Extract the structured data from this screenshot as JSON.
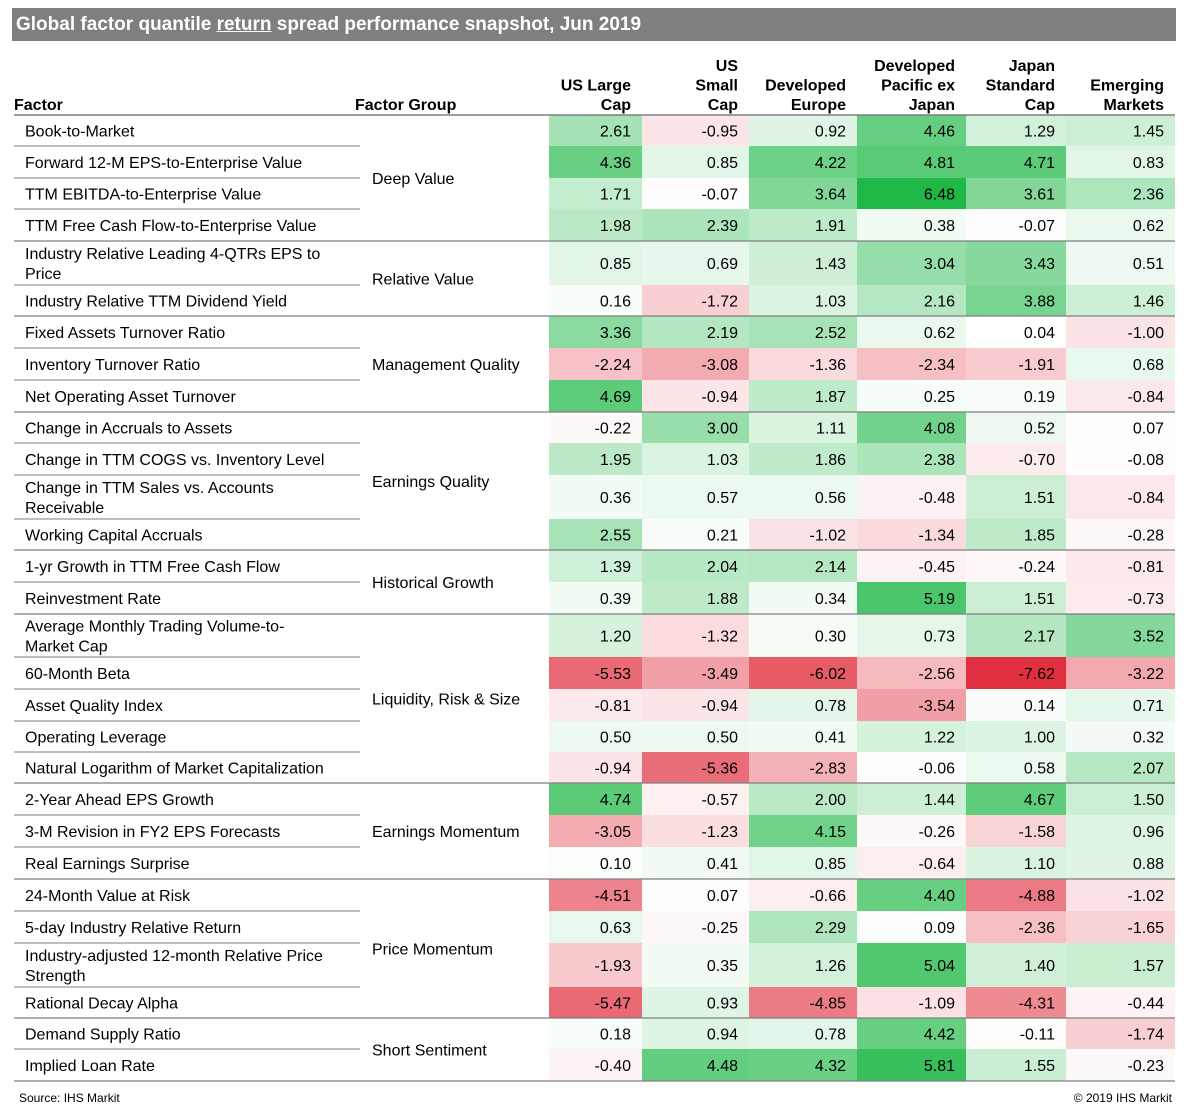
{
  "title": {
    "before": "Global factor quantile ",
    "underlined": "return",
    "after": " spread performance snapshot, Jun 2019"
  },
  "footer": {
    "source": "Source: IHS Markit",
    "copyright": "© 2019 IHS Markit"
  },
  "colors": {
    "positive_max": "#1fb847",
    "negative_max": "#e0303f",
    "neutral": "#ffffff",
    "title_background": "#7f7f7f",
    "rule_lines": "#7f7f7f"
  },
  "chart_data": {
    "type": "table",
    "color_scale": {
      "min": -7.62,
      "max": 6.48,
      "midpoint": 0
    },
    "headers": {
      "factor": "Factor",
      "group": "Factor Group",
      "columns": [
        [
          "US Large",
          "Cap"
        ],
        [
          "US",
          "Small",
          "Cap"
        ],
        [
          "Developed",
          "Europe"
        ],
        [
          "Developed",
          "Pacific ex",
          "Japan"
        ],
        [
          "Japan",
          "Standard",
          "Cap"
        ],
        [
          "Emerging",
          "Markets"
        ]
      ]
    },
    "groups": [
      {
        "name": "Deep Value",
        "rows": [
          {
            "factor": [
              "Book-to-Market"
            ],
            "values": [
              2.61,
              -0.95,
              0.92,
              4.46,
              1.29,
              1.45
            ]
          },
          {
            "factor": [
              "Forward 12-M EPS-to-Enterprise Value"
            ],
            "values": [
              4.36,
              0.85,
              4.22,
              4.81,
              4.71,
              0.83
            ]
          },
          {
            "factor": [
              "TTM EBITDA-to-Enterprise Value"
            ],
            "values": [
              1.71,
              -0.07,
              3.64,
              6.48,
              3.61,
              2.36
            ]
          },
          {
            "factor": [
              "TTM Free Cash Flow-to-Enterprise Value"
            ],
            "values": [
              1.98,
              2.39,
              1.91,
              0.38,
              -0.07,
              0.62
            ]
          }
        ]
      },
      {
        "name": "Relative Value",
        "rows": [
          {
            "factor": [
              "Industry Relative Leading 4-QTRs EPS to",
              "Price"
            ],
            "values": [
              0.85,
              0.69,
              1.43,
              3.04,
              3.43,
              0.51
            ]
          },
          {
            "factor": [
              "Industry Relative TTM Dividend Yield"
            ],
            "values": [
              0.16,
              -1.72,
              1.03,
              2.16,
              3.88,
              1.46
            ]
          }
        ]
      },
      {
        "name": "Management Quality",
        "rows": [
          {
            "factor": [
              "Fixed Assets Turnover Ratio"
            ],
            "values": [
              3.36,
              2.19,
              2.52,
              0.62,
              0.04,
              -1.0
            ]
          },
          {
            "factor": [
              "Inventory Turnover Ratio"
            ],
            "values": [
              -2.24,
              -3.08,
              -1.36,
              -2.34,
              -1.91,
              0.68
            ]
          },
          {
            "factor": [
              "Net Operating Asset Turnover"
            ],
            "values": [
              4.69,
              -0.94,
              1.87,
              0.25,
              0.19,
              -0.84
            ]
          }
        ]
      },
      {
        "name": "Earnings Quality",
        "rows": [
          {
            "factor": [
              "Change in Accruals to Assets"
            ],
            "values": [
              -0.22,
              3.0,
              1.11,
              4.08,
              0.52,
              0.07
            ]
          },
          {
            "factor": [
              "Change in TTM COGS vs. Inventory Level"
            ],
            "values": [
              1.95,
              1.03,
              1.86,
              2.38,
              -0.7,
              -0.08
            ]
          },
          {
            "factor": [
              "Change in TTM Sales vs. Accounts",
              "Receivable"
            ],
            "values": [
              0.36,
              0.57,
              0.56,
              -0.48,
              1.51,
              -0.84
            ]
          },
          {
            "factor": [
              "Working Capital Accruals"
            ],
            "values": [
              2.55,
              0.21,
              -1.02,
              -1.34,
              1.85,
              -0.28
            ]
          }
        ]
      },
      {
        "name": "Historical Growth",
        "rows": [
          {
            "factor": [
              "1-yr Growth in TTM Free Cash Flow"
            ],
            "values": [
              1.39,
              2.04,
              2.14,
              -0.45,
              -0.24,
              -0.81
            ]
          },
          {
            "factor": [
              "Reinvestment Rate"
            ],
            "values": [
              0.39,
              1.88,
              0.34,
              5.19,
              1.51,
              -0.73
            ]
          }
        ]
      },
      {
        "name": "Liquidity, Risk & Size",
        "rows": [
          {
            "factor": [
              "Average Monthly Trading Volume-to-",
              "Market Cap"
            ],
            "values": [
              1.2,
              -1.32,
              0.3,
              0.73,
              2.17,
              3.52
            ]
          },
          {
            "factor": [
              "60-Month Beta"
            ],
            "values": [
              -5.53,
              -3.49,
              -6.02,
              -2.56,
              -7.62,
              -3.22
            ]
          },
          {
            "factor": [
              "Asset Quality Index"
            ],
            "values": [
              -0.81,
              -0.94,
              0.78,
              -3.54,
              0.14,
              0.71
            ]
          },
          {
            "factor": [
              "Operating Leverage"
            ],
            "values": [
              0.5,
              0.5,
              0.41,
              1.22,
              1.0,
              0.32
            ]
          },
          {
            "factor": [
              "Natural Logarithm of Market Capitalization"
            ],
            "values": [
              -0.94,
              -5.36,
              -2.83,
              -0.06,
              0.58,
              2.07
            ]
          }
        ]
      },
      {
        "name": "Earnings Momentum",
        "rows": [
          {
            "factor": [
              "2-Year Ahead EPS Growth"
            ],
            "values": [
              4.74,
              -0.57,
              2.0,
              1.44,
              4.67,
              1.5
            ]
          },
          {
            "factor": [
              "3-M Revision in FY2 EPS Forecasts"
            ],
            "values": [
              -3.05,
              -1.23,
              4.15,
              -0.26,
              -1.58,
              0.96
            ]
          },
          {
            "factor": [
              "Real Earnings Surprise"
            ],
            "values": [
              0.1,
              0.41,
              0.85,
              -0.64,
              1.1,
              0.88
            ]
          }
        ]
      },
      {
        "name": "Price Momentum",
        "rows": [
          {
            "factor": [
              "24-Month Value at Risk"
            ],
            "values": [
              -4.51,
              0.07,
              -0.66,
              4.4,
              -4.88,
              -1.02
            ]
          },
          {
            "factor": [
              "5-day Industry Relative Return"
            ],
            "values": [
              0.63,
              -0.25,
              2.29,
              0.09,
              -2.36,
              -1.65
            ]
          },
          {
            "factor": [
              "Industry-adjusted 12-month Relative Price",
              "Strength"
            ],
            "values": [
              -1.93,
              0.35,
              1.26,
              5.04,
              1.4,
              1.57
            ]
          },
          {
            "factor": [
              "Rational Decay Alpha"
            ],
            "values": [
              -5.47,
              0.93,
              -4.85,
              -1.09,
              -4.31,
              -0.44
            ]
          }
        ]
      },
      {
        "name": "Short Sentiment",
        "rows": [
          {
            "factor": [
              "Demand Supply Ratio"
            ],
            "values": [
              0.18,
              0.94,
              0.78,
              4.42,
              -0.11,
              -1.74
            ]
          },
          {
            "factor": [
              "Implied Loan Rate"
            ],
            "values": [
              -0.4,
              4.48,
              4.32,
              5.81,
              1.55,
              -0.23
            ]
          }
        ]
      }
    ]
  }
}
